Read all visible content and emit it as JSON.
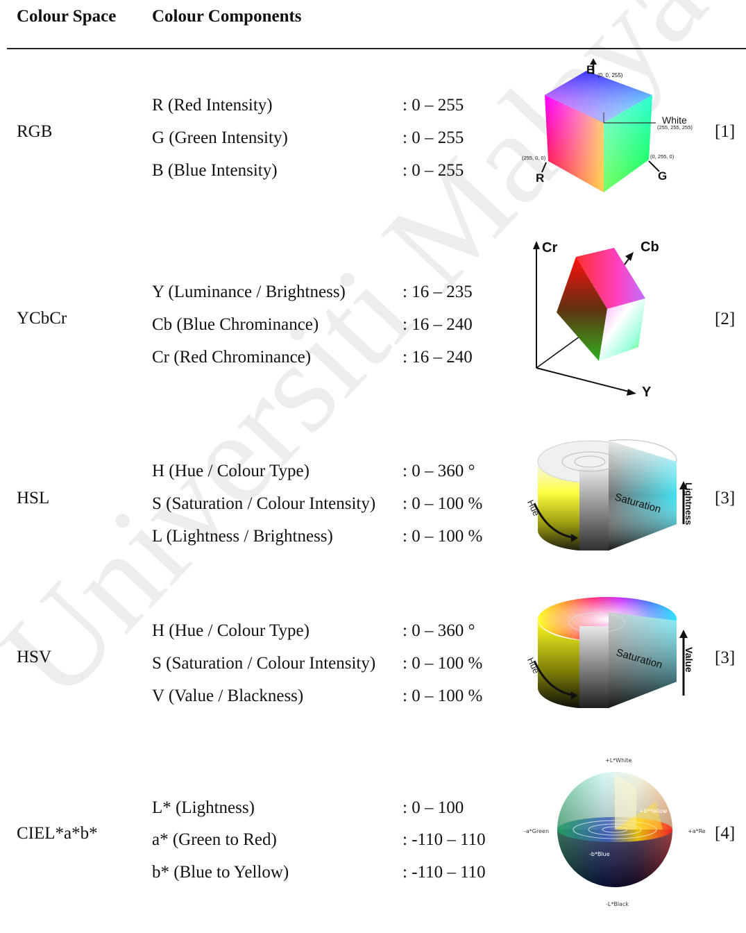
{
  "header": {
    "col_space": "Colour Space",
    "col_components": "Colour Components"
  },
  "rows": [
    {
      "space": "RGB",
      "ref": "[1]",
      "components": [
        {
          "label": "R (Red Intensity)",
          "range": ": 0 – 255"
        },
        {
          "label": "G (Green Intensity)",
          "range": ": 0 – 255"
        },
        {
          "label": "B (Blue Intensity)",
          "range": ": 0 – 255"
        }
      ],
      "figure": {
        "axis_b": "B",
        "axis_r": "R",
        "axis_g": "G",
        "white": "White",
        "b_coord": "(0, 0, 255)",
        "white_coord": "(255, 255, 255)",
        "r_coord": "(255, 0, 0)",
        "g_coord": "(0, 255, 0)"
      }
    },
    {
      "space": "YCbCr",
      "ref": "[2]",
      "components": [
        {
          "label": "Y (Luminance / Brightness)",
          "range": ": 16 – 235"
        },
        {
          "label": "Cb (Blue Chrominance)",
          "range": ": 16 – 240"
        },
        {
          "label": "Cr (Red Chrominance)",
          "range": ": 16 – 240"
        }
      ],
      "figure": {
        "axis_cr": "Cr",
        "axis_cb": "Cb",
        "axis_y": "Y"
      }
    },
    {
      "space": "HSL",
      "ref": "[3]",
      "components": [
        {
          "label": "H (Hue / Colour Type)",
          "range": ": 0 – 360 °"
        },
        {
          "label": "S (Saturation / Colour Intensity)",
          "range": ": 0 – 100 %"
        },
        {
          "label": "L (Lightness / Brightness)",
          "range": ": 0 – 100 %"
        }
      ],
      "figure": {
        "hue": "Hue",
        "saturation": "Saturation",
        "vertical": "Lightness"
      }
    },
    {
      "space": "HSV",
      "ref": "[3]",
      "components": [
        {
          "label": "H (Hue / Colour Type)",
          "range": ": 0 – 360 °"
        },
        {
          "label": "S (Saturation / Colour Intensity)",
          "range": ": 0 – 100 %"
        },
        {
          "label": "V (Value / Blackness)",
          "range": ": 0 – 100 %"
        }
      ],
      "figure": {
        "hue": "Hue",
        "saturation": "Saturation",
        "vertical": "Value"
      }
    },
    {
      "space": "CIEL*a*b*",
      "ref": "[4]",
      "components": [
        {
          "label": "L* (Lightness)",
          "range": ": 0 – 100"
        },
        {
          "label": "a* (Green to Red)",
          "range": ": -110 – 110"
        },
        {
          "label": "b* (Blue to Yellow)",
          "range": ": -110 – 110"
        }
      ],
      "figure": {
        "l_white": "+L*White",
        "l_black": "-L*Black",
        "a_green": "-a*Green",
        "a_red": "+a*Re",
        "b_yellow": "+b*Yellow",
        "b_blue": "-b*Blue"
      }
    }
  ],
  "watermark": "Universiti Malaya"
}
